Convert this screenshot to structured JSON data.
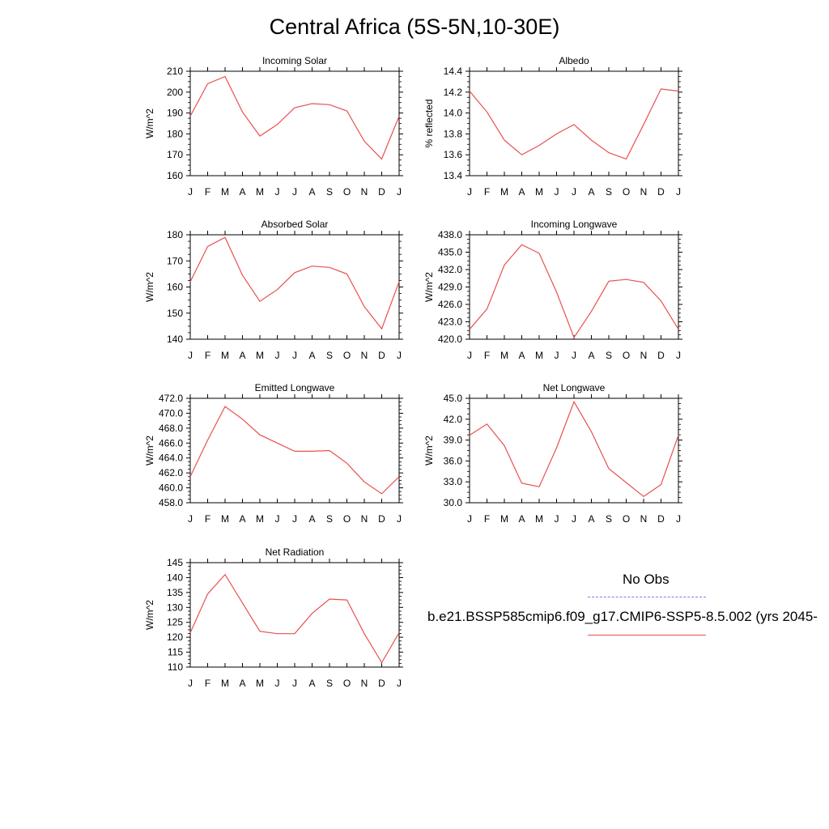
{
  "title": "Central Africa (5S-5N,10-30E)",
  "legend": {
    "obs_label": "No Obs",
    "obs_color": "#7b7bf0",
    "model_label": "b.e21.BSSP585cmip6.f09_g17.CMIP6-SSP5-8.5.002 (yrs 2045-",
    "model_color": "#e85050"
  },
  "chart_data": [
    {
      "type": "line",
      "title": "Incoming Solar",
      "ylabel": "W/m^2",
      "categories": [
        "J",
        "F",
        "M",
        "A",
        "M",
        "J",
        "J",
        "A",
        "S",
        "O",
        "N",
        "D",
        "J"
      ],
      "ylim": [
        160,
        210
      ],
      "yticks": [
        "160",
        "170",
        "180",
        "190",
        "200",
        "210"
      ],
      "series": [
        {
          "values": [
            188.5,
            204,
            207.5,
            190.5,
            179,
            184.5,
            192.5,
            194.5,
            194,
            191,
            176.5,
            168,
            188.5
          ]
        }
      ]
    },
    {
      "type": "line",
      "title": "Albedo",
      "ylabel": "% reflected",
      "categories": [
        "J",
        "F",
        "M",
        "A",
        "M",
        "J",
        "J",
        "A",
        "S",
        "O",
        "N",
        "D",
        "J"
      ],
      "ylim": [
        13.4,
        14.4
      ],
      "yticks": [
        "13.4",
        "13.6",
        "13.8",
        "14.0",
        "14.2",
        "14.4"
      ],
      "series": [
        {
          "values": [
            14.21,
            14.01,
            13.74,
            13.6,
            13.69,
            13.8,
            13.89,
            13.74,
            13.62,
            13.56,
            13.89,
            14.23,
            14.21
          ]
        }
      ]
    },
    {
      "type": "line",
      "title": "Absorbed Solar",
      "ylabel": "W/m^2",
      "categories": [
        "J",
        "F",
        "M",
        "A",
        "M",
        "J",
        "J",
        "A",
        "S",
        "O",
        "N",
        "D",
        "J"
      ],
      "ylim": [
        140,
        180
      ],
      "yticks": [
        "140",
        "150",
        "160",
        "170",
        "180"
      ],
      "series": [
        {
          "values": [
            162,
            175.5,
            179,
            164.5,
            154.5,
            159,
            165.5,
            168,
            167.5,
            165,
            152.5,
            144,
            162
          ]
        }
      ]
    },
    {
      "type": "line",
      "title": "Incoming Longwave",
      "ylabel": "W/m^2",
      "categories": [
        "J",
        "F",
        "M",
        "A",
        "M",
        "J",
        "J",
        "A",
        "S",
        "O",
        "N",
        "D",
        "J"
      ],
      "ylim": [
        420,
        438
      ],
      "yticks": [
        "420.0",
        "423.0",
        "426.0",
        "429.0",
        "432.0",
        "435.0",
        "438.0"
      ],
      "series": [
        {
          "values": [
            421.7,
            425.2,
            432.8,
            436.3,
            434.8,
            428.1,
            420.3,
            424.8,
            430.0,
            430.3,
            429.8,
            426.6,
            421.7
          ]
        }
      ]
    },
    {
      "type": "line",
      "title": "Emitted Longwave",
      "ylabel": "W/m^2",
      "categories": [
        "J",
        "F",
        "M",
        "A",
        "M",
        "J",
        "J",
        "A",
        "S",
        "O",
        "N",
        "D",
        "J"
      ],
      "ylim": [
        458,
        472
      ],
      "yticks": [
        "458.0",
        "460.0",
        "462.0",
        "464.0",
        "466.0",
        "468.0",
        "470.0",
        "472.0"
      ],
      "series": [
        {
          "values": [
            461.5,
            466.4,
            470.9,
            469.2,
            467.1,
            466.0,
            464.9,
            464.9,
            465.0,
            463.3,
            460.8,
            459.2,
            461.5
          ]
        }
      ]
    },
    {
      "type": "line",
      "title": "Net Longwave",
      "ylabel": "W/m^2",
      "categories": [
        "J",
        "F",
        "M",
        "A",
        "M",
        "J",
        "J",
        "A",
        "S",
        "O",
        "N",
        "D",
        "J"
      ],
      "ylim": [
        30,
        45
      ],
      "yticks": [
        "30.0",
        "33.0",
        "36.0",
        "39.0",
        "42.0",
        "45.0"
      ],
      "series": [
        {
          "values": [
            39.7,
            41.3,
            38.2,
            32.8,
            32.3,
            37.9,
            44.5,
            40.2,
            34.9,
            32.9,
            30.9,
            32.6,
            39.7
          ]
        }
      ]
    },
    {
      "type": "line",
      "title": "Net Radiation",
      "ylabel": "W/m^2",
      "categories": [
        "J",
        "F",
        "M",
        "A",
        "M",
        "J",
        "J",
        "A",
        "S",
        "O",
        "N",
        "D",
        "J"
      ],
      "ylim": [
        110,
        145
      ],
      "yticks": [
        "110",
        "115",
        "120",
        "125",
        "130",
        "135",
        "140",
        "145"
      ],
      "series": [
        {
          "values": [
            121.5,
            134.5,
            141,
            131.5,
            122,
            121.2,
            121.2,
            128,
            132.8,
            132.5,
            121.2,
            111.5,
            121.5
          ]
        }
      ]
    }
  ]
}
